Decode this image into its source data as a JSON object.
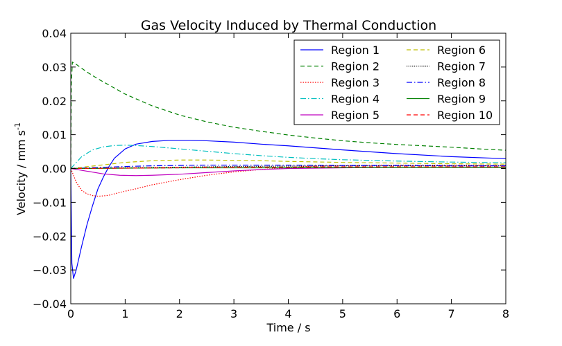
{
  "chart_data": {
    "type": "line",
    "title": "Gas Velocity Induced by Thermal Conduction",
    "xlabel": "Time / s",
    "ylabel_main": "Velocity / mm s",
    "ylabel_superscript": "-1",
    "xlim": [
      0,
      8
    ],
    "ylim": [
      -0.04,
      0.04
    ],
    "xticks": [
      0,
      1,
      2,
      3,
      4,
      5,
      6,
      7,
      8
    ],
    "xtick_labels": [
      "0",
      "1",
      "2",
      "3",
      "4",
      "5",
      "6",
      "7",
      "8"
    ],
    "yticks": [
      -0.04,
      -0.03,
      -0.02,
      -0.01,
      0.0,
      0.01,
      0.02,
      0.03,
      0.04
    ],
    "ytick_labels": [
      "−0.04",
      "−0.03",
      "−0.02",
      "−0.01",
      "0.00",
      "0.01",
      "0.02",
      "0.03",
      "0.04"
    ],
    "grid": false,
    "legend_position": "top-right",
    "legend_columns": 2,
    "series": [
      {
        "name": "Region 1",
        "color": "#0000ff",
        "dash": "solid",
        "x": [
          0,
          0.02,
          0.05,
          0.1,
          0.2,
          0.3,
          0.4,
          0.5,
          0.6,
          0.7,
          0.8,
          1.0,
          1.2,
          1.5,
          1.8,
          2.0,
          2.2,
          2.5,
          3.0,
          3.5,
          4.0,
          5.0,
          6.0,
          7.0,
          8.0
        ],
        "y": [
          0.0,
          -0.028,
          -0.0325,
          -0.03,
          -0.023,
          -0.0165,
          -0.011,
          -0.006,
          -0.0025,
          0.0005,
          0.003,
          0.0058,
          0.0072,
          0.008,
          0.0083,
          0.0083,
          0.0083,
          0.0082,
          0.0078,
          0.0072,
          0.0067,
          0.0055,
          0.0044,
          0.0035,
          0.0029
        ]
      },
      {
        "name": "Region 2",
        "color": "#008000",
        "dash": "6,4",
        "x": [
          0,
          0.01,
          0.03,
          0.05,
          0.1,
          0.3,
          0.5,
          1.0,
          1.5,
          2.0,
          2.5,
          3.0,
          3.5,
          4.0,
          4.5,
          5.0,
          5.5,
          6.0,
          6.5,
          7.0,
          7.5,
          8.0
        ],
        "y": [
          0.0,
          0.025,
          0.0315,
          0.0312,
          0.0308,
          0.0285,
          0.0265,
          0.022,
          0.0185,
          0.0158,
          0.0138,
          0.0122,
          0.011,
          0.0099,
          0.009,
          0.0082,
          0.0076,
          0.0071,
          0.0067,
          0.0063,
          0.0058,
          0.0054
        ]
      },
      {
        "name": "Region 3",
        "color": "#ff0000",
        "dash": "1.5,2",
        "x": [
          0,
          0.1,
          0.2,
          0.3,
          0.4,
          0.5,
          0.6,
          0.7,
          0.8,
          1.0,
          1.2,
          1.5,
          2.0,
          2.5,
          3.0,
          3.5,
          4.0,
          4.5,
          5.0,
          6.0,
          7.0,
          8.0
        ],
        "y": [
          0.0,
          -0.004,
          -0.0065,
          -0.0075,
          -0.008,
          -0.0082,
          -0.0081,
          -0.0079,
          -0.0075,
          -0.0067,
          -0.006,
          -0.0048,
          -0.0033,
          -0.002,
          -0.001,
          -0.0003,
          0.0003,
          0.0007,
          0.0009,
          0.001,
          0.001,
          0.0009
        ]
      },
      {
        "name": "Region 4",
        "color": "#00bfbf",
        "dash": "8,3,1.5,3",
        "x": [
          0,
          0.2,
          0.4,
          0.6,
          0.8,
          1.0,
          1.2,
          1.5,
          2.0,
          2.5,
          3.0,
          3.5,
          4.0,
          4.5,
          5.0,
          5.5,
          6.0,
          7.0,
          8.0
        ],
        "y": [
          0.0,
          0.0035,
          0.0055,
          0.0064,
          0.0068,
          0.0069,
          0.0068,
          0.0065,
          0.0058,
          0.0051,
          0.0044,
          0.0038,
          0.0033,
          0.0029,
          0.0026,
          0.0024,
          0.0022,
          0.0019,
          0.0017
        ]
      },
      {
        "name": "Region 5",
        "color": "#bf00bf",
        "dash": "solid",
        "x": [
          0,
          0.3,
          0.6,
          0.9,
          1.2,
          1.5,
          2.0,
          2.5,
          3.0,
          3.5,
          4.0,
          5.0,
          6.0,
          7.0,
          8.0
        ],
        "y": [
          0.0,
          -0.0008,
          -0.0016,
          -0.002,
          -0.0021,
          -0.002,
          -0.0017,
          -0.0012,
          -0.0007,
          -0.0003,
          0.0,
          0.0002,
          0.0003,
          0.0003,
          0.0003
        ]
      },
      {
        "name": "Region 6",
        "color": "#bfbf00",
        "dash": "6,4",
        "x": [
          0,
          0.5,
          1.0,
          1.5,
          2.0,
          2.5,
          3.0,
          3.5,
          4.0,
          5.0,
          6.0,
          7.0,
          8.0
        ],
        "y": [
          0.0,
          0.0009,
          0.0018,
          0.0023,
          0.0025,
          0.0025,
          0.0024,
          0.0023,
          0.0021,
          0.0018,
          0.0016,
          0.0014,
          0.0013
        ]
      },
      {
        "name": "Region 7",
        "color": "#000000",
        "dash": "1.2,1.5",
        "x": [
          0,
          1,
          2,
          3,
          4,
          5,
          6,
          7,
          8
        ],
        "y": [
          0.0,
          0.0002,
          0.0004,
          0.0006,
          0.0007,
          0.0008,
          0.0008,
          0.0008,
          0.0008
        ]
      },
      {
        "name": "Region 8",
        "color": "#0000ff",
        "dash": "8,3,1.5,3",
        "x": [
          0,
          0.5,
          1.0,
          1.5,
          2.0,
          2.5,
          3.0,
          4.0,
          5.0,
          6.0,
          7.0,
          8.0
        ],
        "y": [
          0.0,
          0.0003,
          0.0006,
          0.0008,
          0.0009,
          0.001,
          0.001,
          0.001,
          0.0009,
          0.0009,
          0.0008,
          0.0008
        ]
      },
      {
        "name": "Region 9",
        "color": "#008000",
        "dash": "solid",
        "x": [
          0,
          1,
          2,
          3,
          4,
          5,
          6,
          7,
          8
        ],
        "y": [
          0.0,
          0.0001,
          0.0002,
          0.0002,
          0.0002,
          0.0003,
          0.0003,
          0.0003,
          0.0003
        ]
      },
      {
        "name": "Region 10",
        "color": "#ff0000",
        "dash": "6,4",
        "x": [
          0,
          1,
          2,
          3,
          4,
          5,
          6,
          7,
          8
        ],
        "y": [
          0.0,
          0.0001,
          0.0002,
          0.0003,
          0.0004,
          0.0005,
          0.0005,
          0.0005,
          0.0005
        ]
      }
    ]
  }
}
